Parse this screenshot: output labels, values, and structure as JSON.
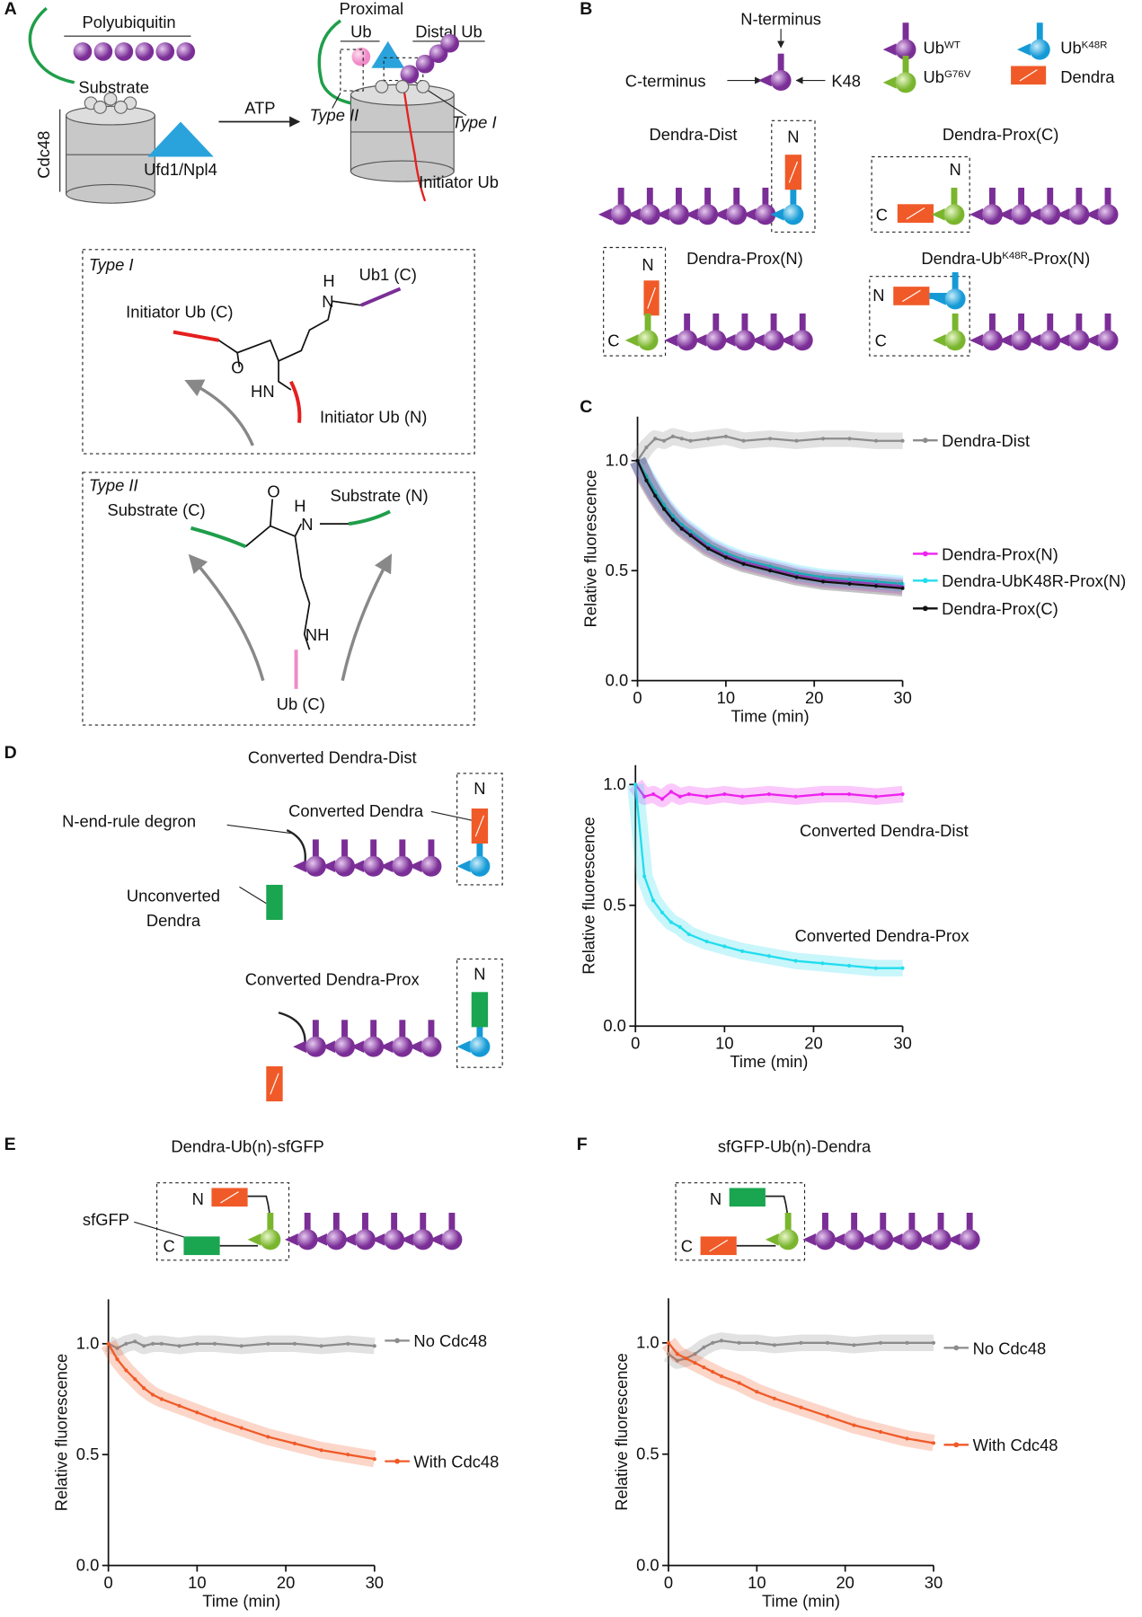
{
  "panels": {
    "A": {
      "label": "A",
      "polyubiquitin": "Polyubiquitin",
      "substrate": "Substrate",
      "cdc48": "Cdc48",
      "atp": "ATP",
      "ufd": "Ufd1/Npl4",
      "proximal": "Proximal",
      "ub": "Ub",
      "distal": "Distal Ub",
      "type2_tag": "Type II",
      "type1_tag": "Type I",
      "initiator": "Initiator Ub",
      "type1_box": {
        "title": "Type I",
        "ub1": "Ub1 (C)",
        "init_c": "Initiator Ub (C)",
        "init_n": "Initiator Ub (N)",
        "o": "O",
        "hn": "HN",
        "h": "H",
        "n": "N"
      },
      "type2_box": {
        "title": "Type II",
        "sub_c": "Substrate (C)",
        "sub_n": "Substrate (N)",
        "o": "O",
        "h": "H",
        "n": "N",
        "nh": "NH",
        "ub_c": "Ub (C)"
      }
    },
    "B": {
      "label": "B",
      "n_term": "N-terminus",
      "c_term": "C-terminus",
      "k48": "K48",
      "ub": "Ub",
      "wt": "WT",
      "k48r": "K48R",
      "g76v": "G76V",
      "dendra": "Dendra",
      "n": "N",
      "c": "C",
      "dist": "Dendra-Dist",
      "prox_c": "Dendra-Prox(C)",
      "prox_n": "Dendra-Prox(N)",
      "ubk_a": "Dendra-Ub",
      "ubk_b": "K48R",
      "ubk_c": "-Prox(N)"
    },
    "C": {
      "label": "C"
    },
    "D": {
      "label": "D",
      "dist": "Converted Dendra-Dist",
      "converted": "Converted Dendra",
      "degron": "N-end-rule degron",
      "unconv1": "Unconverted",
      "unconv2": "Dendra",
      "prox": "Converted Dendra-Prox",
      "n": "N"
    },
    "E": {
      "label": "E",
      "title": "Dendra-Ub(n)-sfGFP",
      "sfgfp": "sfGFP",
      "n": "N",
      "c": "C"
    },
    "F": {
      "label": "F",
      "title": "sfGFP-Ub(n)-Dendra",
      "n": "N",
      "c": "C"
    }
  },
  "chart_data": [
    {
      "type": "line",
      "legend": "right",
      "x_label": "Time (min)",
      "y_label": "Relative fluorescence",
      "xlim": [
        0,
        30
      ],
      "ylim": [
        0,
        1.2
      ],
      "xticks": [
        0,
        10,
        20,
        30
      ],
      "yticks": [
        {
          "value": 0,
          "label": "0.0"
        },
        {
          "value": 0.5,
          "label": "0.5"
        },
        {
          "value": 1,
          "label": "1.0"
        }
      ],
      "x": [
        0,
        1,
        2,
        3,
        4,
        5,
        6,
        8,
        10,
        12,
        15,
        18,
        21,
        24,
        27,
        30
      ],
      "series": [
        {
          "name": "Dendra-Dist",
          "color": "#8c8c8c",
          "values": [
            1.0,
            1.06,
            1.1,
            1.09,
            1.11,
            1.1,
            1.09,
            1.1,
            1.11,
            1.09,
            1.1,
            1.09,
            1.1,
            1.1,
            1.09,
            1.09
          ]
        },
        {
          "name": "Dendra-Prox(N)",
          "color": "#ee22ee",
          "values": [
            1.0,
            0.92,
            0.85,
            0.79,
            0.74,
            0.7,
            0.67,
            0.61,
            0.57,
            0.54,
            0.51,
            0.48,
            0.46,
            0.45,
            0.44,
            0.43
          ]
        },
        {
          "name": "Dendra-UbK48R-Prox(N)",
          "color": "#22ddee",
          "values": [
            1.0,
            0.93,
            0.86,
            0.8,
            0.75,
            0.71,
            0.68,
            0.62,
            0.58,
            0.55,
            0.52,
            0.49,
            0.47,
            0.46,
            0.45,
            0.44
          ]
        },
        {
          "name": "Dendra-Prox(C)",
          "color": "#111111",
          "values": [
            1.0,
            0.91,
            0.84,
            0.78,
            0.73,
            0.69,
            0.66,
            0.6,
            0.56,
            0.53,
            0.5,
            0.47,
            0.45,
            0.44,
            0.43,
            0.42
          ]
        }
      ]
    },
    {
      "type": "line",
      "legend": "inline",
      "x_label": "Time (min)",
      "y_label": "Relative fluorescence",
      "xlim": [
        0,
        30
      ],
      "ylim": [
        0,
        1.08
      ],
      "xticks": [
        0,
        10,
        20,
        30
      ],
      "yticks": [
        {
          "value": 0,
          "label": "0.0"
        },
        {
          "value": 0.5,
          "label": "0.5"
        },
        {
          "value": 1,
          "label": "1.0"
        }
      ],
      "x": [
        0,
        1,
        2,
        3,
        4,
        5,
        6,
        8,
        10,
        12,
        15,
        18,
        21,
        24,
        27,
        30
      ],
      "series": [
        {
          "name": "Converted Dendra-Dist",
          "color": "#ee22ee",
          "values": [
            1.0,
            0.95,
            0.96,
            0.94,
            0.97,
            0.95,
            0.96,
            0.95,
            0.96,
            0.95,
            0.96,
            0.95,
            0.96,
            0.96,
            0.95,
            0.96
          ]
        },
        {
          "name": "Converted Dendra-Prox",
          "color": "#22ddee",
          "values": [
            1.0,
            0.62,
            0.52,
            0.47,
            0.43,
            0.41,
            0.38,
            0.35,
            0.33,
            0.31,
            0.29,
            0.27,
            0.26,
            0.25,
            0.24,
            0.24
          ]
        }
      ]
    },
    {
      "type": "line",
      "legend": "right",
      "x_label": "Time (min)",
      "y_label": "Relative fluorescence",
      "xlim": [
        0,
        30
      ],
      "ylim": [
        0,
        1.2
      ],
      "xticks": [
        0,
        10,
        20,
        30
      ],
      "yticks": [
        {
          "value": 0,
          "label": "0.0"
        },
        {
          "value": 0.5,
          "label": "0.5"
        },
        {
          "value": 1,
          "label": "1.0"
        }
      ],
      "x": [
        0,
        1,
        2,
        3,
        4,
        5,
        6,
        8,
        10,
        12,
        15,
        18,
        21,
        24,
        27,
        30
      ],
      "series": [
        {
          "name": "No Cdc48",
          "color": "#8c8c8c",
          "values": [
            1.0,
            0.98,
            1.0,
            1.01,
            0.99,
            1.0,
            1.0,
            0.99,
            1.0,
            1.0,
            0.99,
            1.0,
            1.0,
            0.99,
            1.0,
            0.99
          ]
        },
        {
          "name": "With Cdc48",
          "color": "#f05a28",
          "values": [
            1.0,
            0.93,
            0.88,
            0.84,
            0.8,
            0.77,
            0.75,
            0.72,
            0.69,
            0.66,
            0.62,
            0.58,
            0.55,
            0.52,
            0.5,
            0.48
          ]
        }
      ]
    },
    {
      "type": "line",
      "legend": "right",
      "x_label": "Time (min)",
      "y_label": "Relative fluorescence",
      "xlim": [
        0,
        30
      ],
      "ylim": [
        0,
        1.2
      ],
      "xticks": [
        0,
        10,
        20,
        30
      ],
      "yticks": [
        {
          "value": 0,
          "label": "0.0"
        },
        {
          "value": 0.5,
          "label": "0.5"
        },
        {
          "value": 1,
          "label": "1.0"
        }
      ],
      "x": [
        0,
        1,
        2,
        3,
        4,
        5,
        6,
        8,
        10,
        12,
        15,
        18,
        21,
        24,
        27,
        30
      ],
      "series": [
        {
          "name": "No Cdc48",
          "color": "#8c8c8c",
          "values": [
            0.95,
            0.92,
            0.93,
            0.95,
            0.98,
            1.0,
            1.01,
            1.0,
            1.0,
            0.99,
            1.0,
            1.0,
            0.99,
            1.0,
            1.0,
            1.0
          ]
        },
        {
          "name": "With Cdc48",
          "color": "#f05a28",
          "values": [
            1.0,
            0.95,
            0.93,
            0.91,
            0.89,
            0.87,
            0.85,
            0.82,
            0.78,
            0.75,
            0.71,
            0.67,
            0.63,
            0.6,
            0.57,
            0.55
          ]
        }
      ]
    }
  ]
}
